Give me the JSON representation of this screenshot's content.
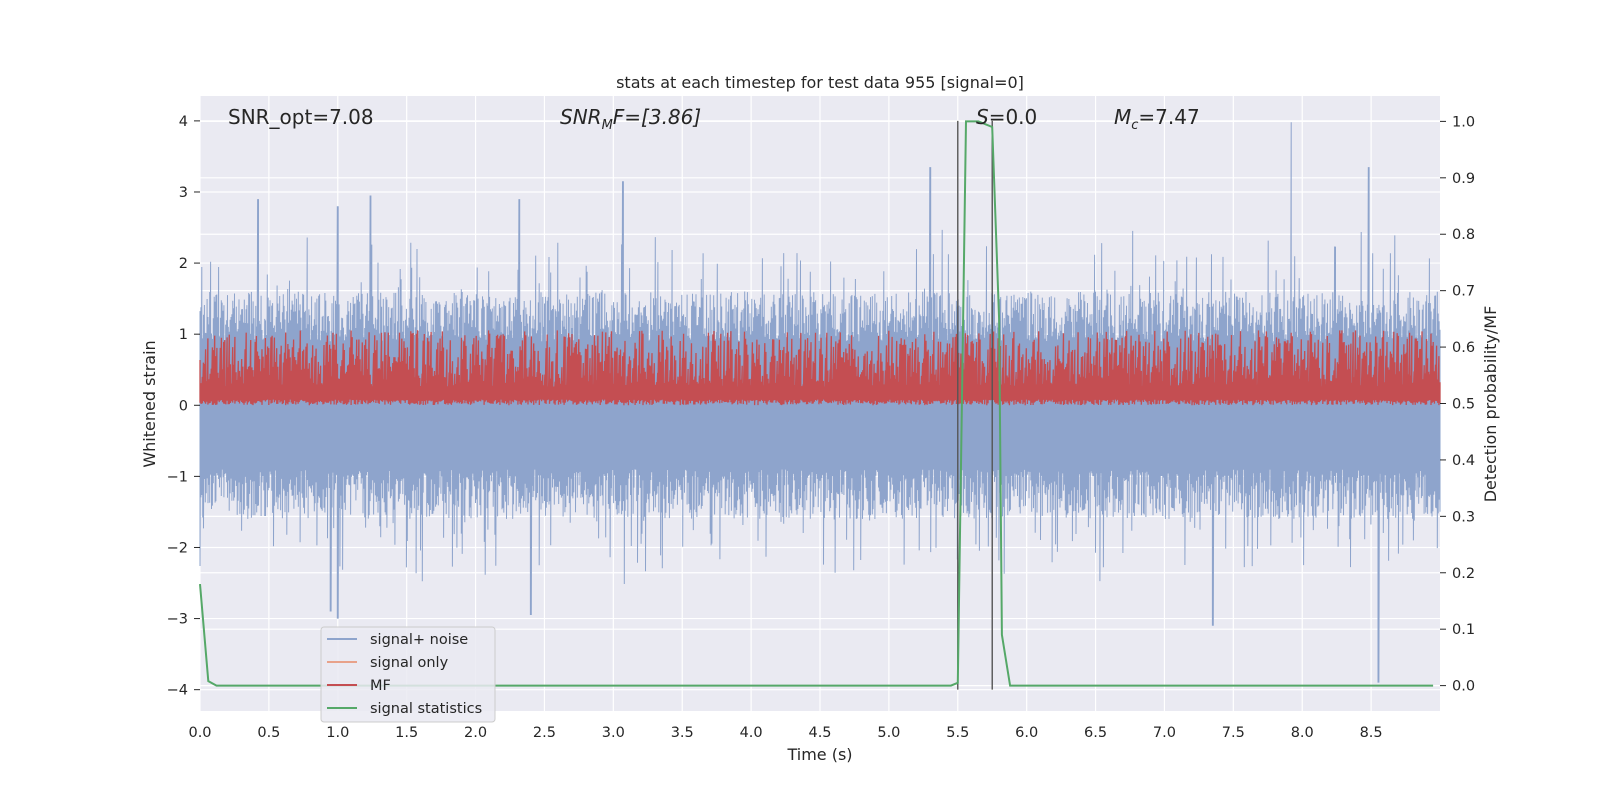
{
  "chart_data": {
    "type": "line",
    "title": "stats at each timestep for test data 955 [signal=0]",
    "xlabel": "Time (s)",
    "ylabel": "Whitened strain",
    "y2label": "Detection probability/MF",
    "xlim": [
      0.0,
      9.0
    ],
    "ylim": [
      -4.3,
      4.35
    ],
    "y2lim": [
      -0.045,
      1.045
    ],
    "xticks": [
      "0.0",
      "0.5",
      "1.0",
      "1.5",
      "2.0",
      "2.5",
      "3.0",
      "3.5",
      "4.0",
      "4.5",
      "5.0",
      "5.5",
      "6.0",
      "6.5",
      "7.0",
      "7.5",
      "8.0",
      "8.5"
    ],
    "yticks": [
      "4",
      "3",
      "2",
      "1",
      "0",
      "−1",
      "−2",
      "−3",
      "−4"
    ],
    "y2ticks": [
      "1.0",
      "0.9",
      "0.8",
      "0.7",
      "0.6",
      "0.5",
      "0.4",
      "0.3",
      "0.2",
      "0.1",
      "0.0"
    ],
    "grid": true,
    "legend_position": "lower-left",
    "annotations": {
      "snr_opt": "SNR_opt=7.08",
      "snr_mf_main": "SNR",
      "snr_mf_sub": "M",
      "snr_mf_rest": "F=[3.86]",
      "s_main": "S",
      "s_rest": "=0.0",
      "mc_main": "M",
      "mc_sub": "c",
      "mc_rest": "=7.47"
    },
    "series": [
      {
        "name": "signal+ noise",
        "color": "#8ea4cc",
        "style": "noise",
        "amplitude_typical": 1.6,
        "peaks": [
          [
            0.42,
            2.9
          ],
          [
            1.0,
            2.8
          ],
          [
            1.24,
            2.95
          ],
          [
            2.32,
            2.9
          ],
          [
            3.07,
            3.15
          ],
          [
            5.3,
            3.35
          ],
          [
            7.92,
            3.98
          ],
          [
            8.48,
            3.35
          ],
          [
            1.0,
            -3.0
          ],
          [
            0.95,
            -2.9
          ],
          [
            2.4,
            -2.95
          ],
          [
            7.35,
            -3.1
          ],
          [
            8.55,
            -3.9
          ]
        ]
      },
      {
        "name": "signal only",
        "color": "#e8a28a",
        "points": []
      },
      {
        "name": "MF",
        "color": "#c44e52",
        "axis": "right",
        "style": "mf_band",
        "band": [
          0.5,
          0.58
        ]
      },
      {
        "name": "signal statistics",
        "color": "#55a868",
        "axis": "right",
        "x": [
          0.0,
          0.06,
          0.12,
          0.5,
          1.0,
          2.0,
          3.0,
          4.0,
          5.0,
          5.45,
          5.5,
          5.53,
          5.56,
          5.65,
          5.7,
          5.75,
          5.8,
          5.82,
          5.88,
          6.0,
          7.0,
          8.0,
          8.5,
          8.95
        ],
        "values": [
          0.18,
          0.008,
          0.0,
          0.0,
          0.0,
          0.0,
          0.0,
          0.0,
          0.0,
          0.0,
          0.005,
          0.5,
          1.0,
          1.0,
          0.995,
          0.99,
          0.65,
          0.09,
          0.0,
          0.0,
          0.0,
          0.0,
          0.0,
          0.0
        ]
      }
    ],
    "vlines": [
      {
        "x": 5.5,
        "ymin": -4.0,
        "ymax": 4.0,
        "color": "#555555"
      },
      {
        "x": 5.75,
        "ymin": -4.0,
        "ymax": 4.0,
        "color": "#555555"
      }
    ]
  }
}
